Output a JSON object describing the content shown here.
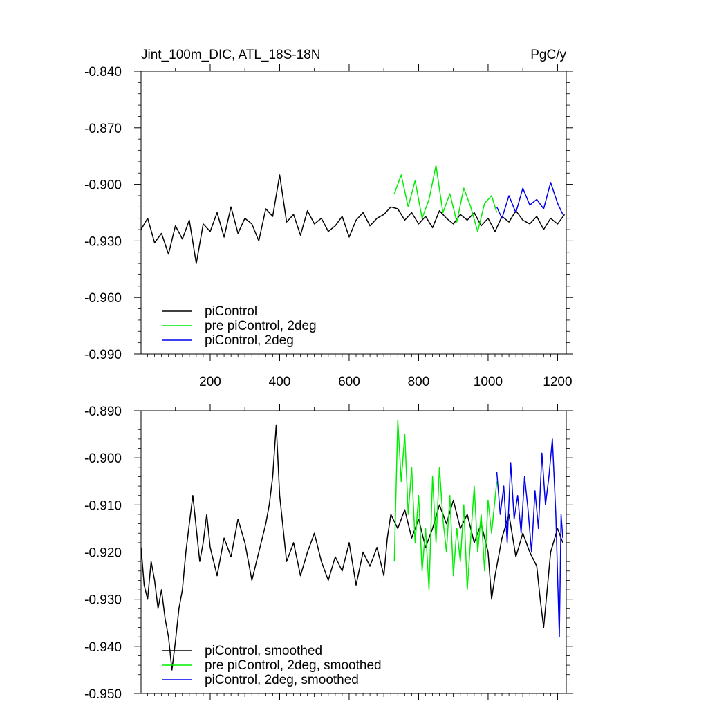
{
  "figure": {
    "title_left": "Jint_100m_DIC, ATL_18S-18N",
    "title_right": "PgC/y"
  },
  "chart_data": [
    {
      "type": "line",
      "title": "Jint_100m_DIC, ATL_18S-18N",
      "units": "PgC/y",
      "xlim": [
        1,
        1225
      ],
      "ylim": [
        -0.99,
        -0.84
      ],
      "x_ticks": [
        200,
        400,
        600,
        800,
        1000,
        1200
      ],
      "y_ticks": [
        -0.84,
        -0.87,
        -0.9,
        -0.93,
        -0.96,
        -0.99
      ],
      "y_tick_labels": [
        "-0.840",
        "-0.870",
        "-0.900",
        "-0.930",
        "-0.960",
        "-0.990"
      ],
      "legend_position": "bottom-left",
      "series": [
        {
          "name": "piControl",
          "color": "#000000",
          "x": [
            1,
            20,
            40,
            60,
            80,
            100,
            120,
            140,
            160,
            180,
            200,
            220,
            240,
            260,
            280,
            300,
            320,
            340,
            360,
            380,
            400,
            420,
            440,
            460,
            480,
            500,
            520,
            540,
            560,
            580,
            600,
            620,
            640,
            660,
            680,
            700,
            720,
            740,
            760,
            780,
            800,
            820,
            840,
            860,
            880,
            900,
            920,
            940,
            960,
            980,
            1000,
            1020,
            1040,
            1060,
            1080,
            1100,
            1120,
            1140,
            1160,
            1180,
            1200,
            1220
          ],
          "values": [
            -0.924,
            -0.918,
            -0.931,
            -0.926,
            -0.937,
            -0.922,
            -0.929,
            -0.919,
            -0.942,
            -0.921,
            -0.925,
            -0.915,
            -0.928,
            -0.912,
            -0.926,
            -0.918,
            -0.921,
            -0.93,
            -0.913,
            -0.917,
            -0.895,
            -0.92,
            -0.916,
            -0.927,
            -0.914,
            -0.921,
            -0.918,
            -0.925,
            -0.922,
            -0.917,
            -0.928,
            -0.919,
            -0.915,
            -0.922,
            -0.918,
            -0.916,
            -0.912,
            -0.913,
            -0.919,
            -0.915,
            -0.921,
            -0.917,
            -0.923,
            -0.914,
            -0.918,
            -0.921,
            -0.916,
            -0.919,
            -0.915,
            -0.922,
            -0.918,
            -0.925,
            -0.917,
            -0.92,
            -0.914,
            -0.919,
            -0.921,
            -0.917,
            -0.924,
            -0.918,
            -0.921,
            -0.916
          ]
        },
        {
          "name": "pre piControl, 2deg",
          "color": "#00ee00",
          "x": [
            730,
            750,
            770,
            790,
            810,
            830,
            850,
            870,
            890,
            910,
            930,
            950,
            970,
            990,
            1010,
            1025
          ],
          "values": [
            -0.905,
            -0.895,
            -0.912,
            -0.898,
            -0.918,
            -0.908,
            -0.89,
            -0.915,
            -0.905,
            -0.92,
            -0.902,
            -0.912,
            -0.925,
            -0.91,
            -0.906,
            -0.915
          ]
        },
        {
          "name": "piControl, 2deg",
          "color": "#0000ee",
          "x": [
            1025,
            1040,
            1060,
            1080,
            1100,
            1120,
            1140,
            1160,
            1180,
            1200,
            1215
          ],
          "values": [
            -0.912,
            -0.918,
            -0.906,
            -0.915,
            -0.902,
            -0.911,
            -0.908,
            -0.913,
            -0.899,
            -0.91,
            -0.916
          ]
        }
      ]
    },
    {
      "type": "line",
      "xlim": [
        1,
        1225
      ],
      "ylim": [
        -0.95,
        -0.89
      ],
      "y_ticks": [
        -0.89,
        -0.9,
        -0.91,
        -0.92,
        -0.93,
        -0.94,
        -0.95
      ],
      "y_tick_labels": [
        "-0.890",
        "-0.900",
        "-0.910",
        "-0.920",
        "-0.930",
        "-0.940",
        "-0.950"
      ],
      "legend_position": "bottom-left",
      "series": [
        {
          "name": "piControl, smoothed",
          "color": "#000000",
          "x": [
            1,
            10,
            20,
            30,
            40,
            50,
            60,
            70,
            80,
            90,
            100,
            110,
            120,
            130,
            140,
            150,
            160,
            170,
            180,
            190,
            200,
            220,
            240,
            260,
            280,
            300,
            320,
            340,
            360,
            370,
            380,
            390,
            400,
            410,
            420,
            440,
            460,
            480,
            500,
            520,
            540,
            560,
            580,
            600,
            620,
            640,
            660,
            680,
            700,
            710,
            720,
            740,
            760,
            780,
            800,
            820,
            840,
            860,
            880,
            900,
            920,
            940,
            960,
            980,
            1000,
            1010,
            1020,
            1040,
            1060,
            1080,
            1100,
            1120,
            1140,
            1150,
            1160,
            1180,
            1200,
            1215
          ],
          "values": [
            -0.919,
            -0.927,
            -0.93,
            -0.922,
            -0.926,
            -0.932,
            -0.928,
            -0.934,
            -0.938,
            -0.945,
            -0.939,
            -0.932,
            -0.928,
            -0.92,
            -0.914,
            -0.908,
            -0.915,
            -0.922,
            -0.918,
            -0.912,
            -0.919,
            -0.925,
            -0.917,
            -0.921,
            -0.913,
            -0.918,
            -0.926,
            -0.92,
            -0.914,
            -0.91,
            -0.904,
            -0.893,
            -0.908,
            -0.915,
            -0.922,
            -0.918,
            -0.925,
            -0.92,
            -0.916,
            -0.922,
            -0.926,
            -0.921,
            -0.924,
            -0.918,
            -0.927,
            -0.92,
            -0.923,
            -0.919,
            -0.925,
            -0.917,
            -0.912,
            -0.915,
            -0.911,
            -0.917,
            -0.913,
            -0.919,
            -0.915,
            -0.91,
            -0.914,
            -0.909,
            -0.915,
            -0.912,
            -0.918,
            -0.914,
            -0.92,
            -0.93,
            -0.925,
            -0.917,
            -0.912,
            -0.921,
            -0.916,
            -0.92,
            -0.923,
            -0.93,
            -0.936,
            -0.92,
            -0.915,
            -0.918
          ]
        },
        {
          "name": "pre piControl, 2deg, smoothed",
          "color": "#00ee00",
          "x": [
            730,
            740,
            750,
            760,
            770,
            780,
            790,
            800,
            810,
            820,
            830,
            840,
            850,
            860,
            870,
            880,
            890,
            900,
            910,
            920,
            930,
            940,
            950,
            960,
            970,
            980,
            990,
            1000,
            1010,
            1025
          ],
          "values": [
            -0.922,
            -0.892,
            -0.905,
            -0.895,
            -0.912,
            -0.902,
            -0.918,
            -0.908,
            -0.924,
            -0.915,
            -0.928,
            -0.904,
            -0.918,
            -0.902,
            -0.913,
            -0.92,
            -0.908,
            -0.925,
            -0.915,
            -0.922,
            -0.91,
            -0.928,
            -0.917,
            -0.906,
            -0.92,
            -0.912,
            -0.924,
            -0.909,
            -0.916,
            -0.905
          ]
        },
        {
          "name": "piControl, 2deg, smoothed",
          "color": "#0000ee",
          "x": [
            1025,
            1035,
            1045,
            1055,
            1065,
            1075,
            1085,
            1095,
            1105,
            1115,
            1125,
            1135,
            1145,
            1155,
            1165,
            1175,
            1185,
            1195,
            1205,
            1210,
            1215
          ],
          "values": [
            -0.903,
            -0.912,
            -0.906,
            -0.918,
            -0.901,
            -0.913,
            -0.908,
            -0.916,
            -0.904,
            -0.911,
            -0.92,
            -0.907,
            -0.915,
            -0.899,
            -0.91,
            -0.904,
            -0.896,
            -0.912,
            -0.938,
            -0.912,
            -0.917
          ]
        }
      ]
    }
  ]
}
